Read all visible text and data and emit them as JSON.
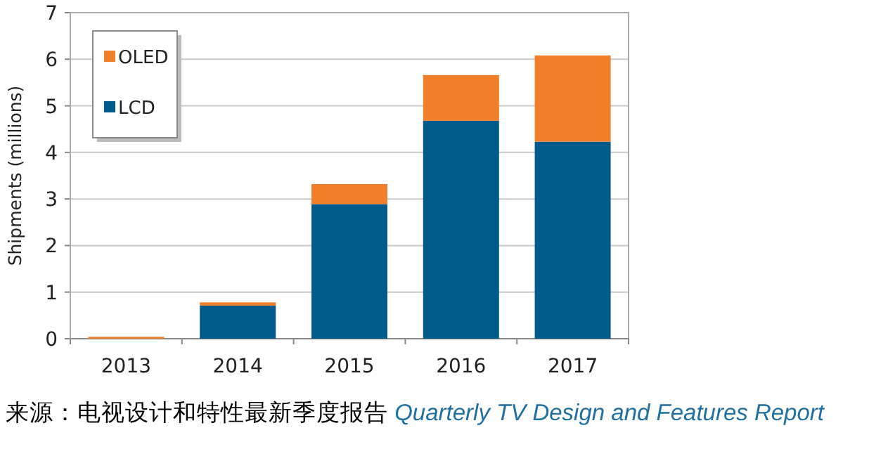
{
  "chart_data": {
    "type": "bar",
    "stacked": true,
    "ylabel": "Shipments (millions)",
    "categories": [
      "2013",
      "2014",
      "2015",
      "2016",
      "2017"
    ],
    "series": [
      {
        "name": "LCD",
        "color": "#005a8c",
        "values": [
          0,
          0.71,
          2.89,
          4.68,
          4.23
        ]
      },
      {
        "name": "OLED",
        "color": "#f07f2a",
        "values": [
          0.04,
          0.07,
          0.43,
          0.98,
          1.85
        ]
      }
    ],
    "ylim": [
      0,
      7
    ],
    "yticks": [
      0,
      1,
      2,
      3,
      4,
      5,
      6,
      7
    ],
    "grid": "y",
    "legend": "top left",
    "annotations": [
      "来源：电视设计和特性最新季度报告 *Quarterly TV Design and Features Report*"
    ]
  }
}
